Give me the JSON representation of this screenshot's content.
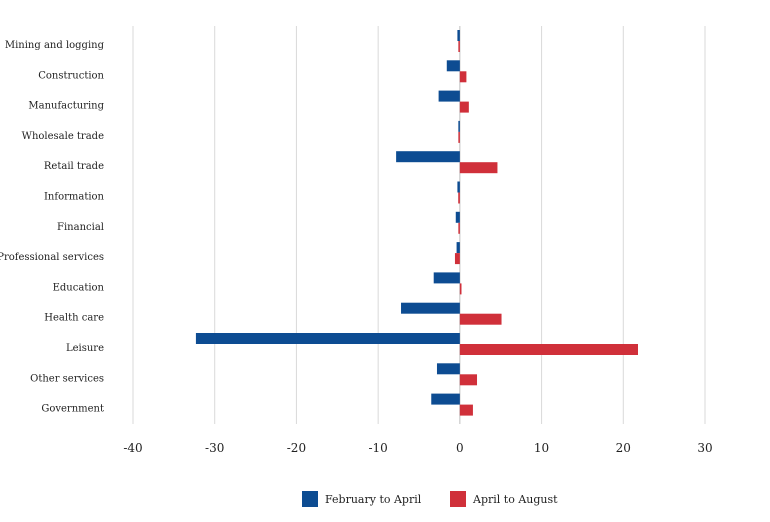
{
  "chart_data": {
    "type": "bar",
    "orientation": "horizontal",
    "categories": [
      "Mining and logging",
      "Construction",
      "Manufacturing",
      "Wholesale trade",
      "Retail trade",
      "Information",
      "Financial",
      "Professional services",
      "Education",
      "Health care",
      "Leisure",
      "Other services",
      "Government"
    ],
    "series": [
      {
        "name": "February to April",
        "color": "#0d4c92",
        "values": [
          -0.3,
          -1.6,
          -2.6,
          -0.1,
          -7.8,
          -0.3,
          -0.5,
          -0.4,
          -3.2,
          -7.2,
          -32.3,
          -2.8,
          -3.5
        ]
      },
      {
        "name": "April to August",
        "color": "#d0303a",
        "values": [
          -0.1,
          0.8,
          1.1,
          -0.1,
          4.6,
          -0.2,
          -0.1,
          -0.6,
          0.2,
          5.1,
          21.8,
          2.1,
          1.6
        ]
      }
    ],
    "xlim": [
      -40,
      30
    ],
    "ticks": [
      -40,
      -30,
      -20,
      -10,
      0,
      10,
      20,
      30
    ],
    "tick_labels": [
      "-40",
      "-30",
      "-20",
      "-10",
      "0",
      "10",
      "20",
      "30"
    ],
    "title": "",
    "xlabel": "",
    "ylabel": "",
    "grid": true,
    "legend_position": "bottom-center"
  }
}
